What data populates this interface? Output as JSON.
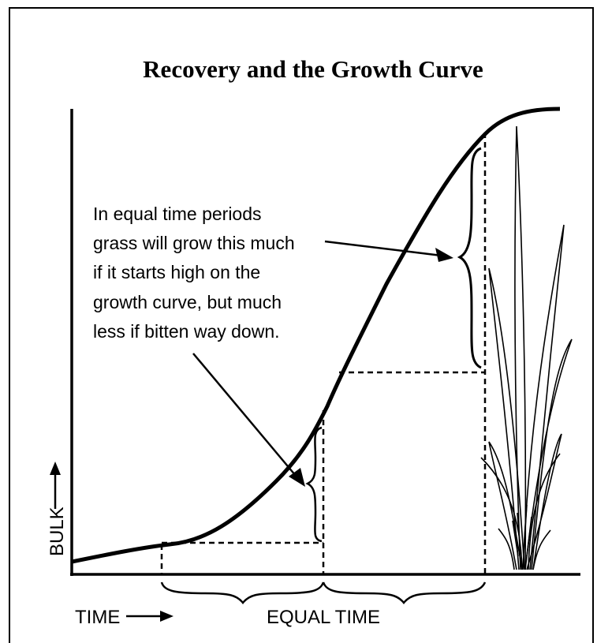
{
  "title": "Recovery and the Growth Curve",
  "annotation": {
    "lines": [
      "In equal time periods",
      "grass will grow this much",
      "if it starts high on the",
      "growth curve, but much",
      "less if bitten way down."
    ]
  },
  "y_axis_label": "BULK",
  "x_axis_label": "TIME",
  "interval_label": "EQUAL TIME"
}
